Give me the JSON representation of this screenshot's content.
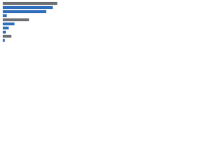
{
  "chart_data": {
    "type": "bar",
    "orientation": "horizontal",
    "values": [
      83,
      76,
      66,
      6,
      40,
      18,
      9,
      5,
      13,
      3
    ],
    "colors": [
      "#6d6e71",
      "#2f6eba",
      "#2f6eba",
      "#2f6eba",
      "#6d6e71",
      "#2f6eba",
      "#2f6eba",
      "#2f6eba",
      "#6d6e71",
      "#2f6eba"
    ],
    "xlim": [
      0,
      100
    ]
  }
}
